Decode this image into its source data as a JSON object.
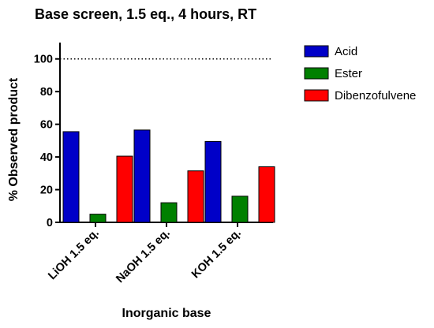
{
  "chart_data": {
    "type": "bar",
    "title": "Base screen, 1.5 eq., 4 hours, RT",
    "xlabel": "Inorganic base",
    "ylabel": "% Observed product",
    "categories": [
      "LiOH 1.5 eq.",
      "NaOH 1.5 eq.",
      "KOH 1.5 eq."
    ],
    "series": [
      {
        "name": "Acid",
        "color": "#0000c8",
        "values": [
          55.5,
          56.5,
          49.5
        ]
      },
      {
        "name": "Ester",
        "color": "#008000",
        "values": [
          5,
          12,
          16
        ]
      },
      {
        "name": "Dibenzofulvene",
        "color": "#ff0000",
        "values": [
          40.5,
          31.5,
          34
        ]
      }
    ],
    "ylim": [
      0,
      110
    ],
    "yticks": [
      0,
      20,
      40,
      60,
      80,
      100
    ],
    "reference_line": {
      "y": 100,
      "style": "dotted"
    },
    "grid": false,
    "legend_position": "right"
  }
}
